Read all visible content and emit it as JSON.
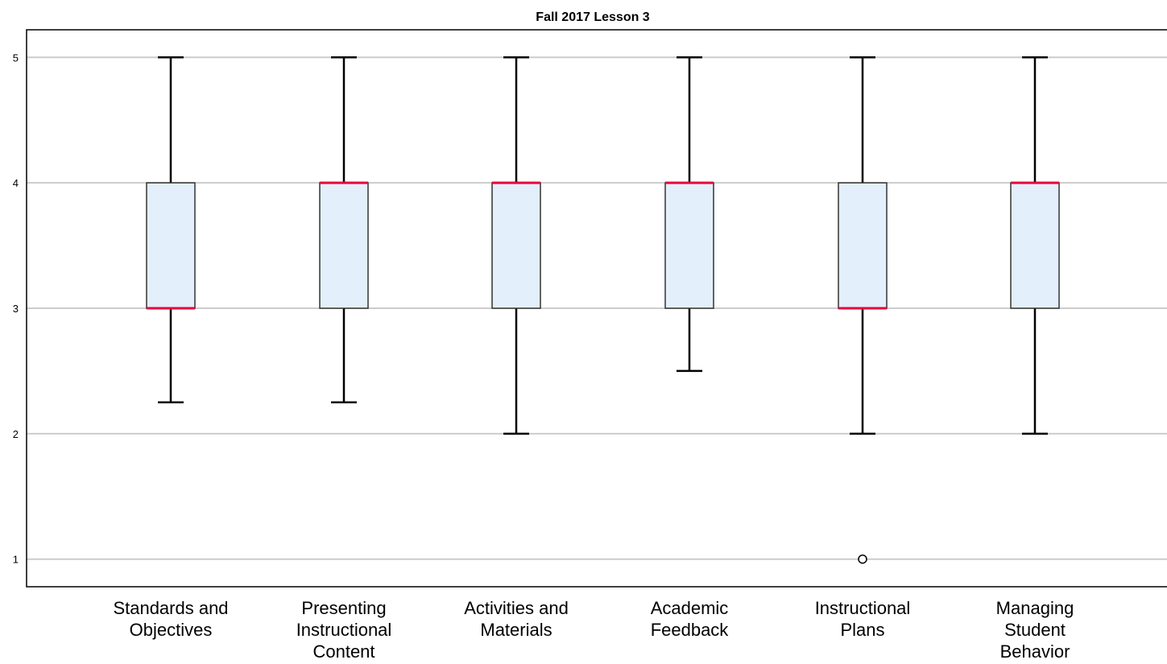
{
  "chart_data": {
    "type": "box",
    "title": "Fall 2017 Lesson 3",
    "xlabel": "",
    "ylabel": "",
    "ylim": [
      0.78,
      5.22
    ],
    "yticks": [
      "1",
      "2",
      "3",
      "4",
      "5"
    ],
    "grid": true,
    "colors": {
      "box_fill": "#e3effb",
      "box_edge": "#333333",
      "median": "#e8003f",
      "gridline": "#cccccc"
    },
    "categories": [
      [
        "Standards and",
        "Objectives"
      ],
      [
        "Presenting",
        "Instructional",
        "Content"
      ],
      [
        "Activities and",
        "Materials"
      ],
      [
        "Academic",
        "Feedback"
      ],
      [
        "Instructional",
        "Plans"
      ],
      [
        "Managing",
        "Student",
        "Behavior"
      ]
    ],
    "boxes": [
      {
        "whisker_low": 2.25,
        "q1": 3,
        "median": 3,
        "q3": 4,
        "whisker_high": 5,
        "outliers": []
      },
      {
        "whisker_low": 2.25,
        "q1": 3,
        "median": 4,
        "q3": 4,
        "whisker_high": 5,
        "outliers": []
      },
      {
        "whisker_low": 2,
        "q1": 3,
        "median": 4,
        "q3": 4,
        "whisker_high": 5,
        "outliers": []
      },
      {
        "whisker_low": 2.5,
        "q1": 3,
        "median": 4,
        "q3": 4,
        "whisker_high": 5,
        "outliers": []
      },
      {
        "whisker_low": 2,
        "q1": 3,
        "median": 3,
        "q3": 4,
        "whisker_high": 5,
        "outliers": [
          1
        ]
      },
      {
        "whisker_low": 2,
        "q1": 3,
        "median": 4,
        "q3": 4,
        "whisker_high": 5,
        "outliers": []
      }
    ]
  }
}
